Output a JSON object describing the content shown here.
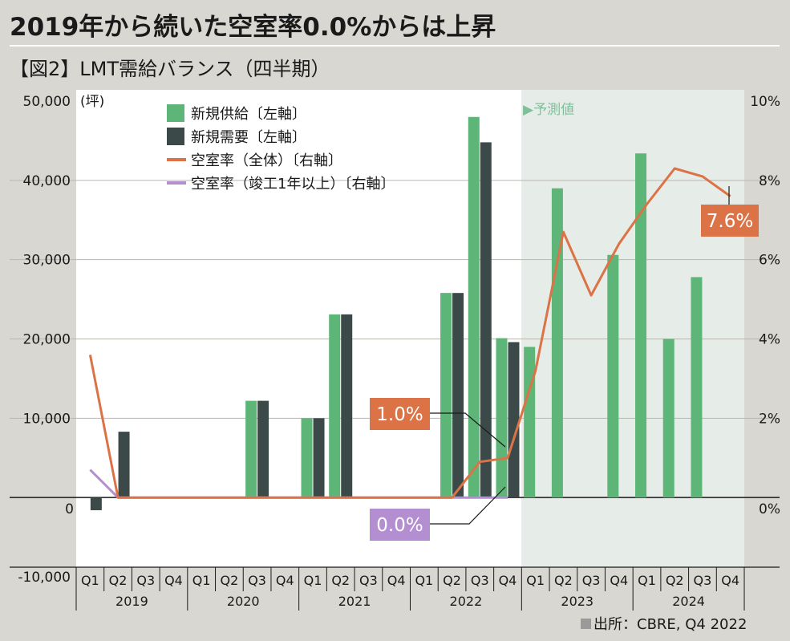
{
  "title": "2019年から続いた空室率0.0%からは上昇",
  "subtitle": "【図2】LMT需給バランス（四半期）",
  "source": "出所：CBRE, Q4 2022",
  "forecast_label": "▶予測値",
  "colors": {
    "background": "#d8d7d1",
    "plot": "#ffffff",
    "forecast_band": "#e6ece7",
    "supply": "#5db678",
    "demand": "#3b4a48",
    "vacancy_all": "#db7346",
    "vacancy_old": "#b38ed0"
  },
  "chart_data": {
    "type": "bar",
    "title": "LMT需給バランス（四半期）",
    "y_left_unit": "(坪)",
    "y_left_range": [
      -10000,
      50000
    ],
    "y_left_ticks": [
      "50,000",
      "40,000",
      "30,000",
      "20,000",
      "10,000",
      "0",
      "-10,000"
    ],
    "y_right_range": [
      -2,
      10
    ],
    "y_right_ticks": [
      "10%",
      "8%",
      "6%",
      "4%",
      "2%",
      "0%"
    ],
    "quarters": [
      "Q1",
      "Q2",
      "Q3",
      "Q4",
      "Q1",
      "Q2",
      "Q3",
      "Q4",
      "Q1",
      "Q2",
      "Q3",
      "Q4",
      "Q1",
      "Q2",
      "Q3",
      "Q4",
      "Q1",
      "Q2",
      "Q3",
      "Q4",
      "Q1",
      "Q2",
      "Q3",
      "Q4"
    ],
    "years": [
      "2019",
      "2020",
      "2021",
      "2022",
      "2023",
      "2024"
    ],
    "forecast_start_index": 16,
    "legend": [
      "新規供給〔左軸〕",
      "新規需要〔左軸〕",
      "空室率（全体）〔右軸〕",
      "空室率（竣工1年以上）〔右軸〕"
    ],
    "series": [
      {
        "name": "新規供給〔左軸〕",
        "kind": "bar",
        "axis": "left",
        "values": [
          0,
          0,
          0,
          0,
          0,
          0,
          12200,
          0,
          10000,
          23100,
          0,
          0,
          0,
          25800,
          48000,
          20100,
          19000,
          39000,
          0,
          30600,
          43400,
          20000,
          27800,
          0
        ]
      },
      {
        "name": "新規需要〔左軸〕",
        "kind": "bar",
        "axis": "left",
        "values": [
          -1600,
          8300,
          0,
          0,
          0,
          0,
          12200,
          0,
          10000,
          23100,
          0,
          0,
          0,
          25800,
          44800,
          19600,
          null,
          null,
          null,
          null,
          null,
          null,
          null,
          null
        ]
      },
      {
        "name": "空室率（全体）〔右軸〕",
        "kind": "line",
        "axis": "right",
        "values": [
          3.6,
          0,
          0,
          0,
          0,
          0,
          0,
          0,
          0,
          0,
          0,
          0,
          0,
          0,
          0.9,
          1.0,
          3.2,
          6.7,
          5.1,
          6.4,
          7.4,
          8.3,
          8.1,
          7.6
        ]
      },
      {
        "name": "空室率（竣工1年以上）〔右軸〕",
        "kind": "line",
        "axis": "right",
        "values": [
          0.7,
          0,
          0,
          0,
          0,
          0,
          0,
          0,
          0,
          0,
          0,
          0,
          0,
          0,
          0,
          0,
          null,
          null,
          null,
          null,
          null,
          null,
          null,
          null
        ]
      }
    ],
    "annotations": [
      {
        "text": "1.0%",
        "series": 2,
        "index": 15,
        "style": "vacancy_all"
      },
      {
        "text": "0.0%",
        "series": 3,
        "index": 15,
        "style": "vacancy_old"
      },
      {
        "text": "7.6%",
        "series": 2,
        "index": 23,
        "style": "vacancy_all"
      }
    ]
  }
}
